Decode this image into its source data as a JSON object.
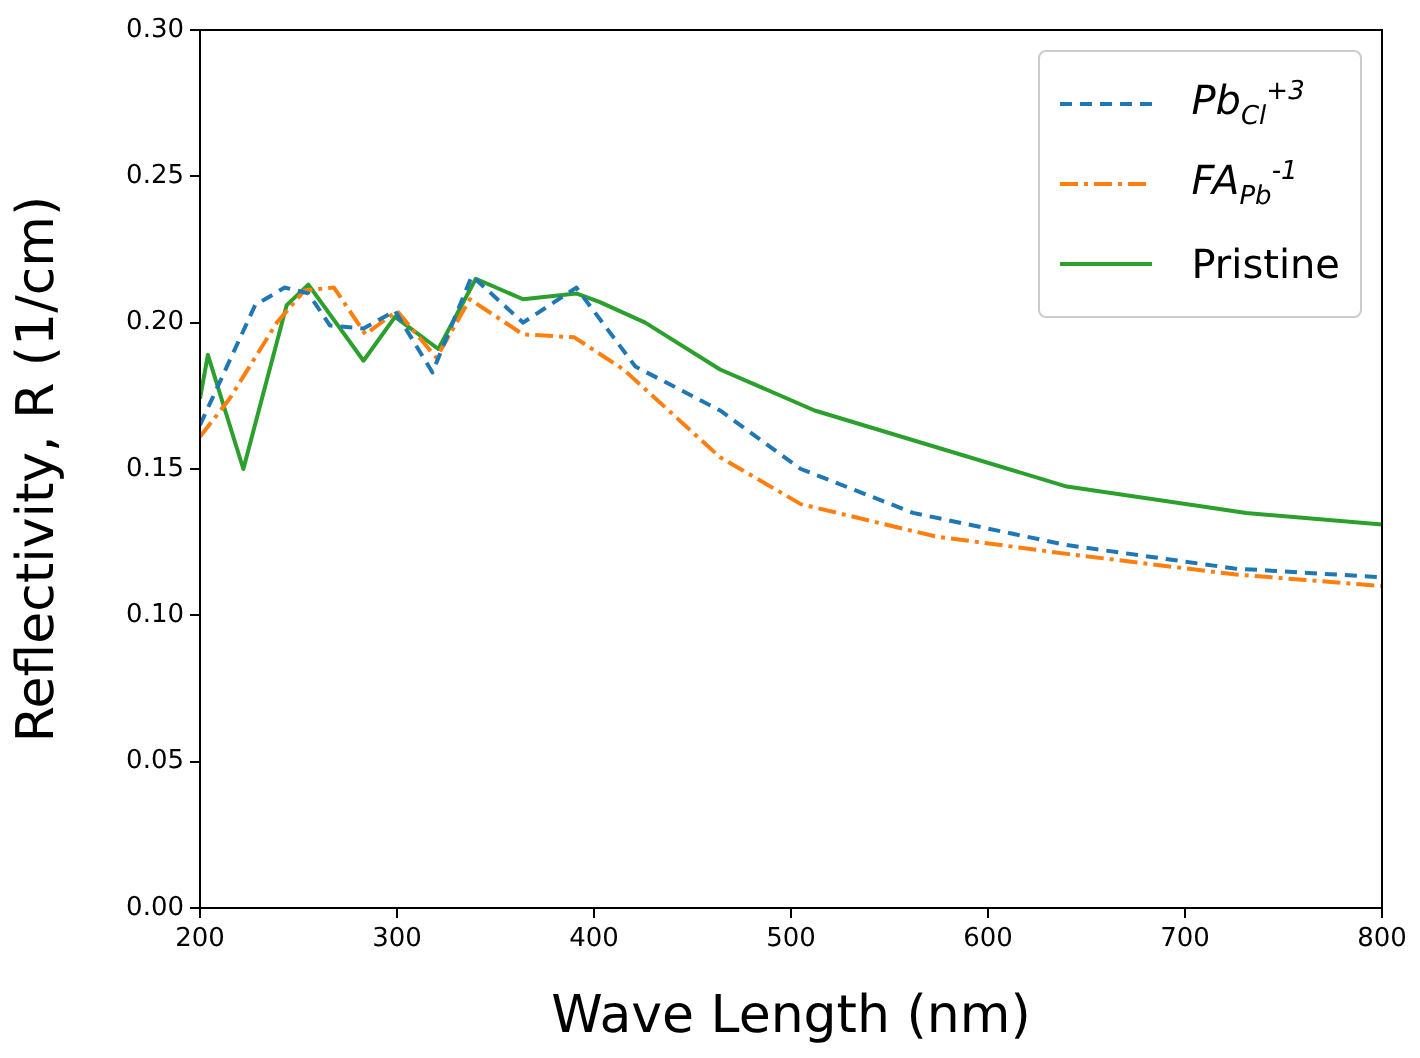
{
  "chart_data": {
    "type": "line",
    "xlabel": "Wave Length (nm)",
    "ylabel": "Reflectivity, R (1/cm)",
    "xlim": [
      200,
      800
    ],
    "xticks": [
      200,
      300,
      400,
      500,
      600,
      700,
      800
    ],
    "ylim": [
      0,
      0.3
    ],
    "yticks": [
      {
        "value": 0,
        "label": "0.00"
      },
      {
        "value": 0.05,
        "label": "0.05"
      },
      {
        "value": 0.1,
        "label": "0.10"
      },
      {
        "value": 0.15,
        "label": "0.15"
      },
      {
        "value": 0.2,
        "label": "0.20"
      },
      {
        "value": 0.25,
        "label": "0.25"
      },
      {
        "value": 0.3,
        "label": "0.30"
      }
    ],
    "legend": "top right",
    "grid": false,
    "marker": "none",
    "series": [
      {
        "name": "Pb$_{Cl}$$^{+3}$",
        "color": "#1f77b4",
        "line_style": "dashed",
        "x": [
          200,
          228,
          243,
          255,
          266,
          283,
          299,
          318,
          338,
          364,
          391,
          421,
          464,
          505,
          562,
          640,
          725,
          800
        ],
        "values": [
          0.165,
          0.206,
          0.212,
          0.21,
          0.199,
          0.198,
          0.204,
          0.183,
          0.216,
          0.2,
          0.212,
          0.185,
          0.17,
          0.15,
          0.135,
          0.124,
          0.116,
          0.113
        ]
      },
      {
        "name": "FA$_{Pb}$$^{-1}$",
        "color": "#ff7f0e",
        "line_style": "dashdot",
        "x": [
          200,
          215,
          239,
          253,
          268,
          284,
          300,
          320,
          337,
          364,
          390,
          415,
          464,
          505,
          573,
          640,
          725,
          800
        ],
        "values": [
          0.161,
          0.174,
          0.2,
          0.211,
          0.212,
          0.196,
          0.204,
          0.188,
          0.208,
          0.196,
          0.195,
          0.184,
          0.154,
          0.138,
          0.127,
          0.121,
          0.114,
          0.11
        ]
      },
      {
        "name": "Pristine",
        "color": "#2ca02c",
        "line_style": "solid",
        "x": [
          200,
          204,
          222,
          244,
          255,
          283,
          299,
          321,
          340,
          364,
          391,
          403,
          426,
          464,
          512,
          640,
          731,
          800
        ],
        "values": [
          0.174,
          0.189,
          0.15,
          0.206,
          0.213,
          0.187,
          0.202,
          0.191,
          0.215,
          0.208,
          0.21,
          0.207,
          0.2,
          0.184,
          0.17,
          0.144,
          0.135,
          0.131
        ]
      }
    ]
  }
}
